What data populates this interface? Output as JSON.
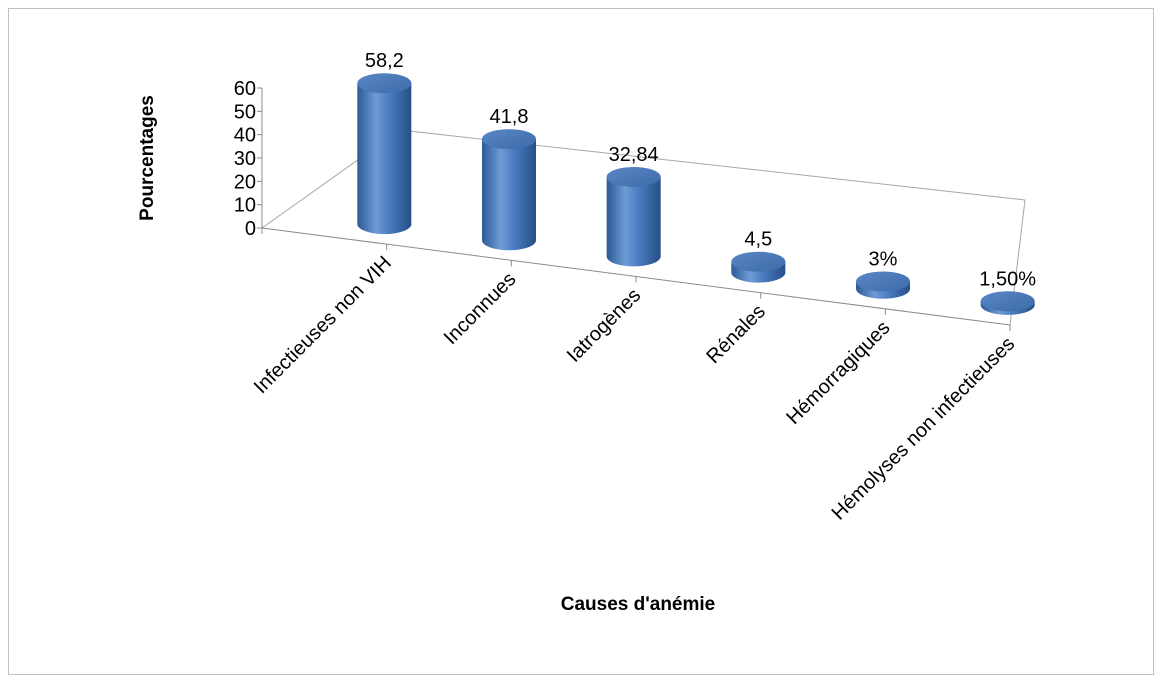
{
  "chart_data": {
    "type": "bar",
    "style": "3d-cylinder",
    "xlabel": "Causes d'anémie",
    "ylabel": "Pourcentages",
    "ylim": [
      0,
      60
    ],
    "yticks": [
      "0",
      "10",
      "20",
      "30",
      "40",
      "50",
      "60"
    ],
    "categories": [
      "Infectieuses non VIH",
      "Inconnues",
      "Iatrogènes",
      "Rénales",
      "Hémorragiques",
      "Hémolyses non infectieuses"
    ],
    "values": [
      58.2,
      41.8,
      32.84,
      4.5,
      3,
      1.5
    ],
    "value_labels": [
      "58,2",
      "41,8",
      "32,84",
      "4,5",
      "3%",
      "1,50%"
    ],
    "bar_color": "#4f81bd",
    "grid": false
  }
}
